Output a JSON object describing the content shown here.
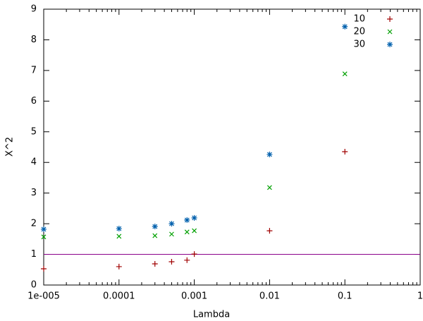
{
  "chart_data": {
    "type": "scatter",
    "x_label": "Lambda",
    "y_label": "X^2",
    "xscale": "log",
    "x": [
      1e-05,
      0.0001,
      0.0003,
      0.0005,
      0.0008,
      0.001,
      0.01,
      0.1
    ],
    "series": [
      {
        "name": "10",
        "color": "#a00000",
        "marker": "plus",
        "values": [
          0.53,
          0.6,
          0.69,
          0.76,
          0.81,
          1.01,
          1.77,
          4.35
        ]
      },
      {
        "name": "20",
        "color": "#00a000",
        "marker": "cross",
        "values": [
          1.57,
          1.59,
          1.61,
          1.66,
          1.73,
          1.77,
          3.18,
          6.89
        ]
      },
      {
        "name": "30",
        "color": "#0060ad",
        "marker": "star",
        "values": [
          1.82,
          1.84,
          1.91,
          2.0,
          2.12,
          2.19,
          4.26,
          8.43
        ]
      }
    ],
    "hline": {
      "value": 1,
      "color": "#8b008b"
    },
    "xlim": [
      1e-05,
      1
    ],
    "xticks": [
      {
        "value": 1e-05,
        "label": "1e-005"
      },
      {
        "value": 0.0001,
        "label": "0.0001"
      },
      {
        "value": 0.001,
        "label": "0.001"
      },
      {
        "value": 0.01,
        "label": "0.01"
      },
      {
        "value": 0.1,
        "label": "0.1"
      },
      {
        "value": 1,
        "label": "1"
      }
    ],
    "ylim": [
      0,
      9
    ],
    "yticks": [
      0,
      1,
      2,
      3,
      4,
      5,
      6,
      7,
      8,
      9
    ],
    "grid": false,
    "legend": "top-right"
  }
}
